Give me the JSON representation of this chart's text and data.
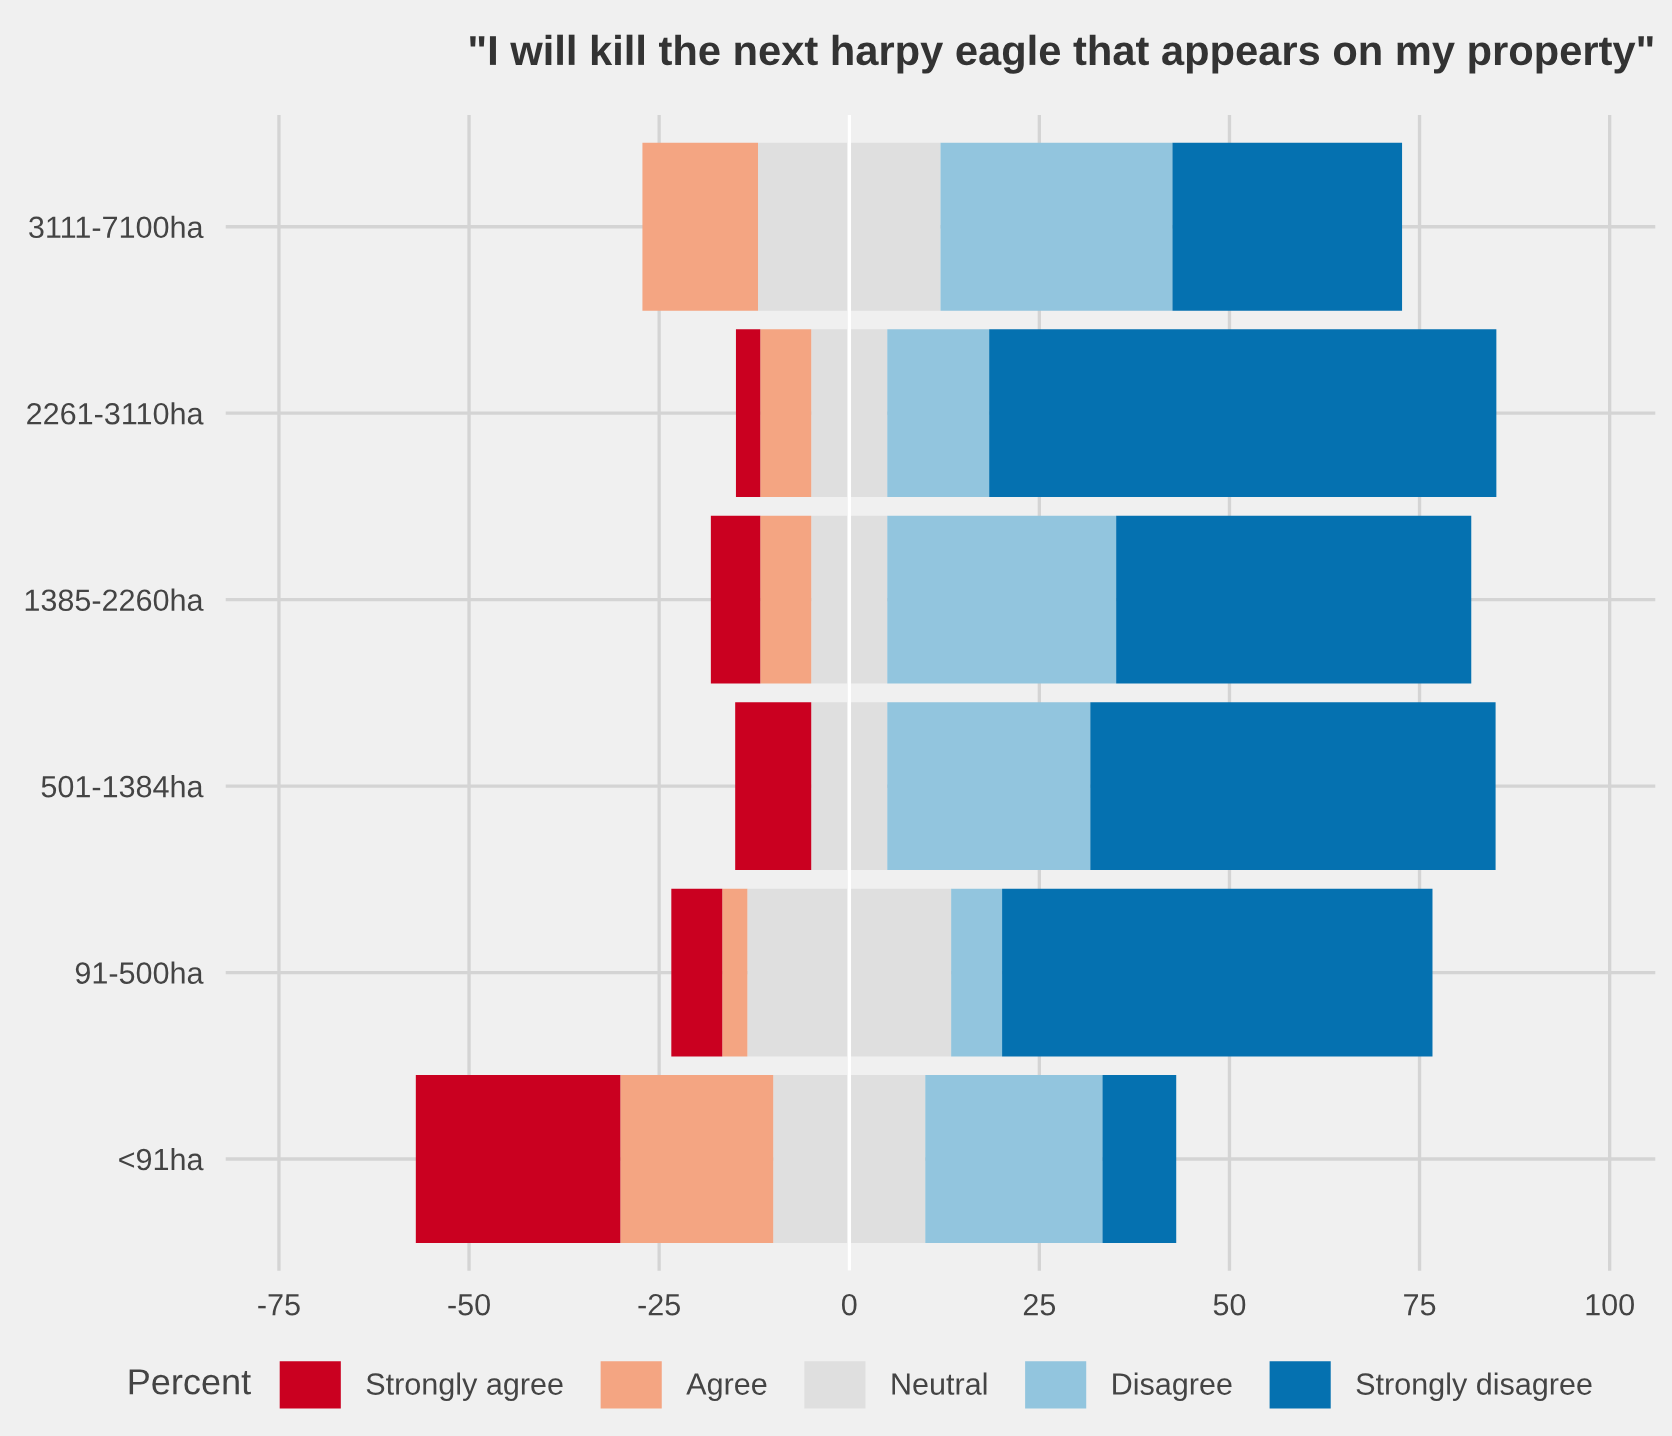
{
  "chart_data": {
    "type": "bar",
    "orientation": "horizontal",
    "stacked": true,
    "title": "\"I will kill the next harpy eagle that appears on my property\"",
    "legend_title": "Percent",
    "categories": [
      "3111-7100ha",
      "2261-3110ha",
      "1385-2260ha",
      "501-1384ha",
      "91-500ha",
      "<91ha"
    ],
    "series": [
      {
        "name": "Neutral",
        "color": "#dfdfdf",
        "values": [
          -12,
          -5,
          -5,
          -5,
          -13.4,
          -10
        ]
      },
      {
        "name": "Agree",
        "color": "#f4a582",
        "values": [
          -15.2,
          -6.7,
          -6.7,
          0,
          -3.3,
          -20.1
        ]
      },
      {
        "name": "Strongly agree",
        "color": "#ca0020",
        "values": [
          0,
          -3.2,
          -6.5,
          -10,
          -6.7,
          -26.9
        ]
      },
      {
        "color": "#dfdfdf",
        "values": [
          12,
          5,
          5,
          5,
          13.4,
          10
        ]
      },
      {
        "name": "Disagree",
        "color": "#92c5de",
        "values": [
          30.5,
          13.4,
          30.1,
          26.7,
          6.7,
          23.3
        ]
      },
      {
        "name": "Strongly disagree",
        "color": "#0571b0",
        "values": [
          30.2,
          66.7,
          46.7,
          53.3,
          56.6,
          9.7
        ]
      }
    ],
    "xlim": [
      -82,
      106
    ],
    "xticks": [
      -75,
      -50,
      -25,
      0,
      25,
      50,
      75,
      100
    ],
    "ref_lines": [
      {
        "axis": "x",
        "value": 0,
        "color": "#ffffff"
      }
    ],
    "grid": true,
    "legend": "bottom"
  }
}
